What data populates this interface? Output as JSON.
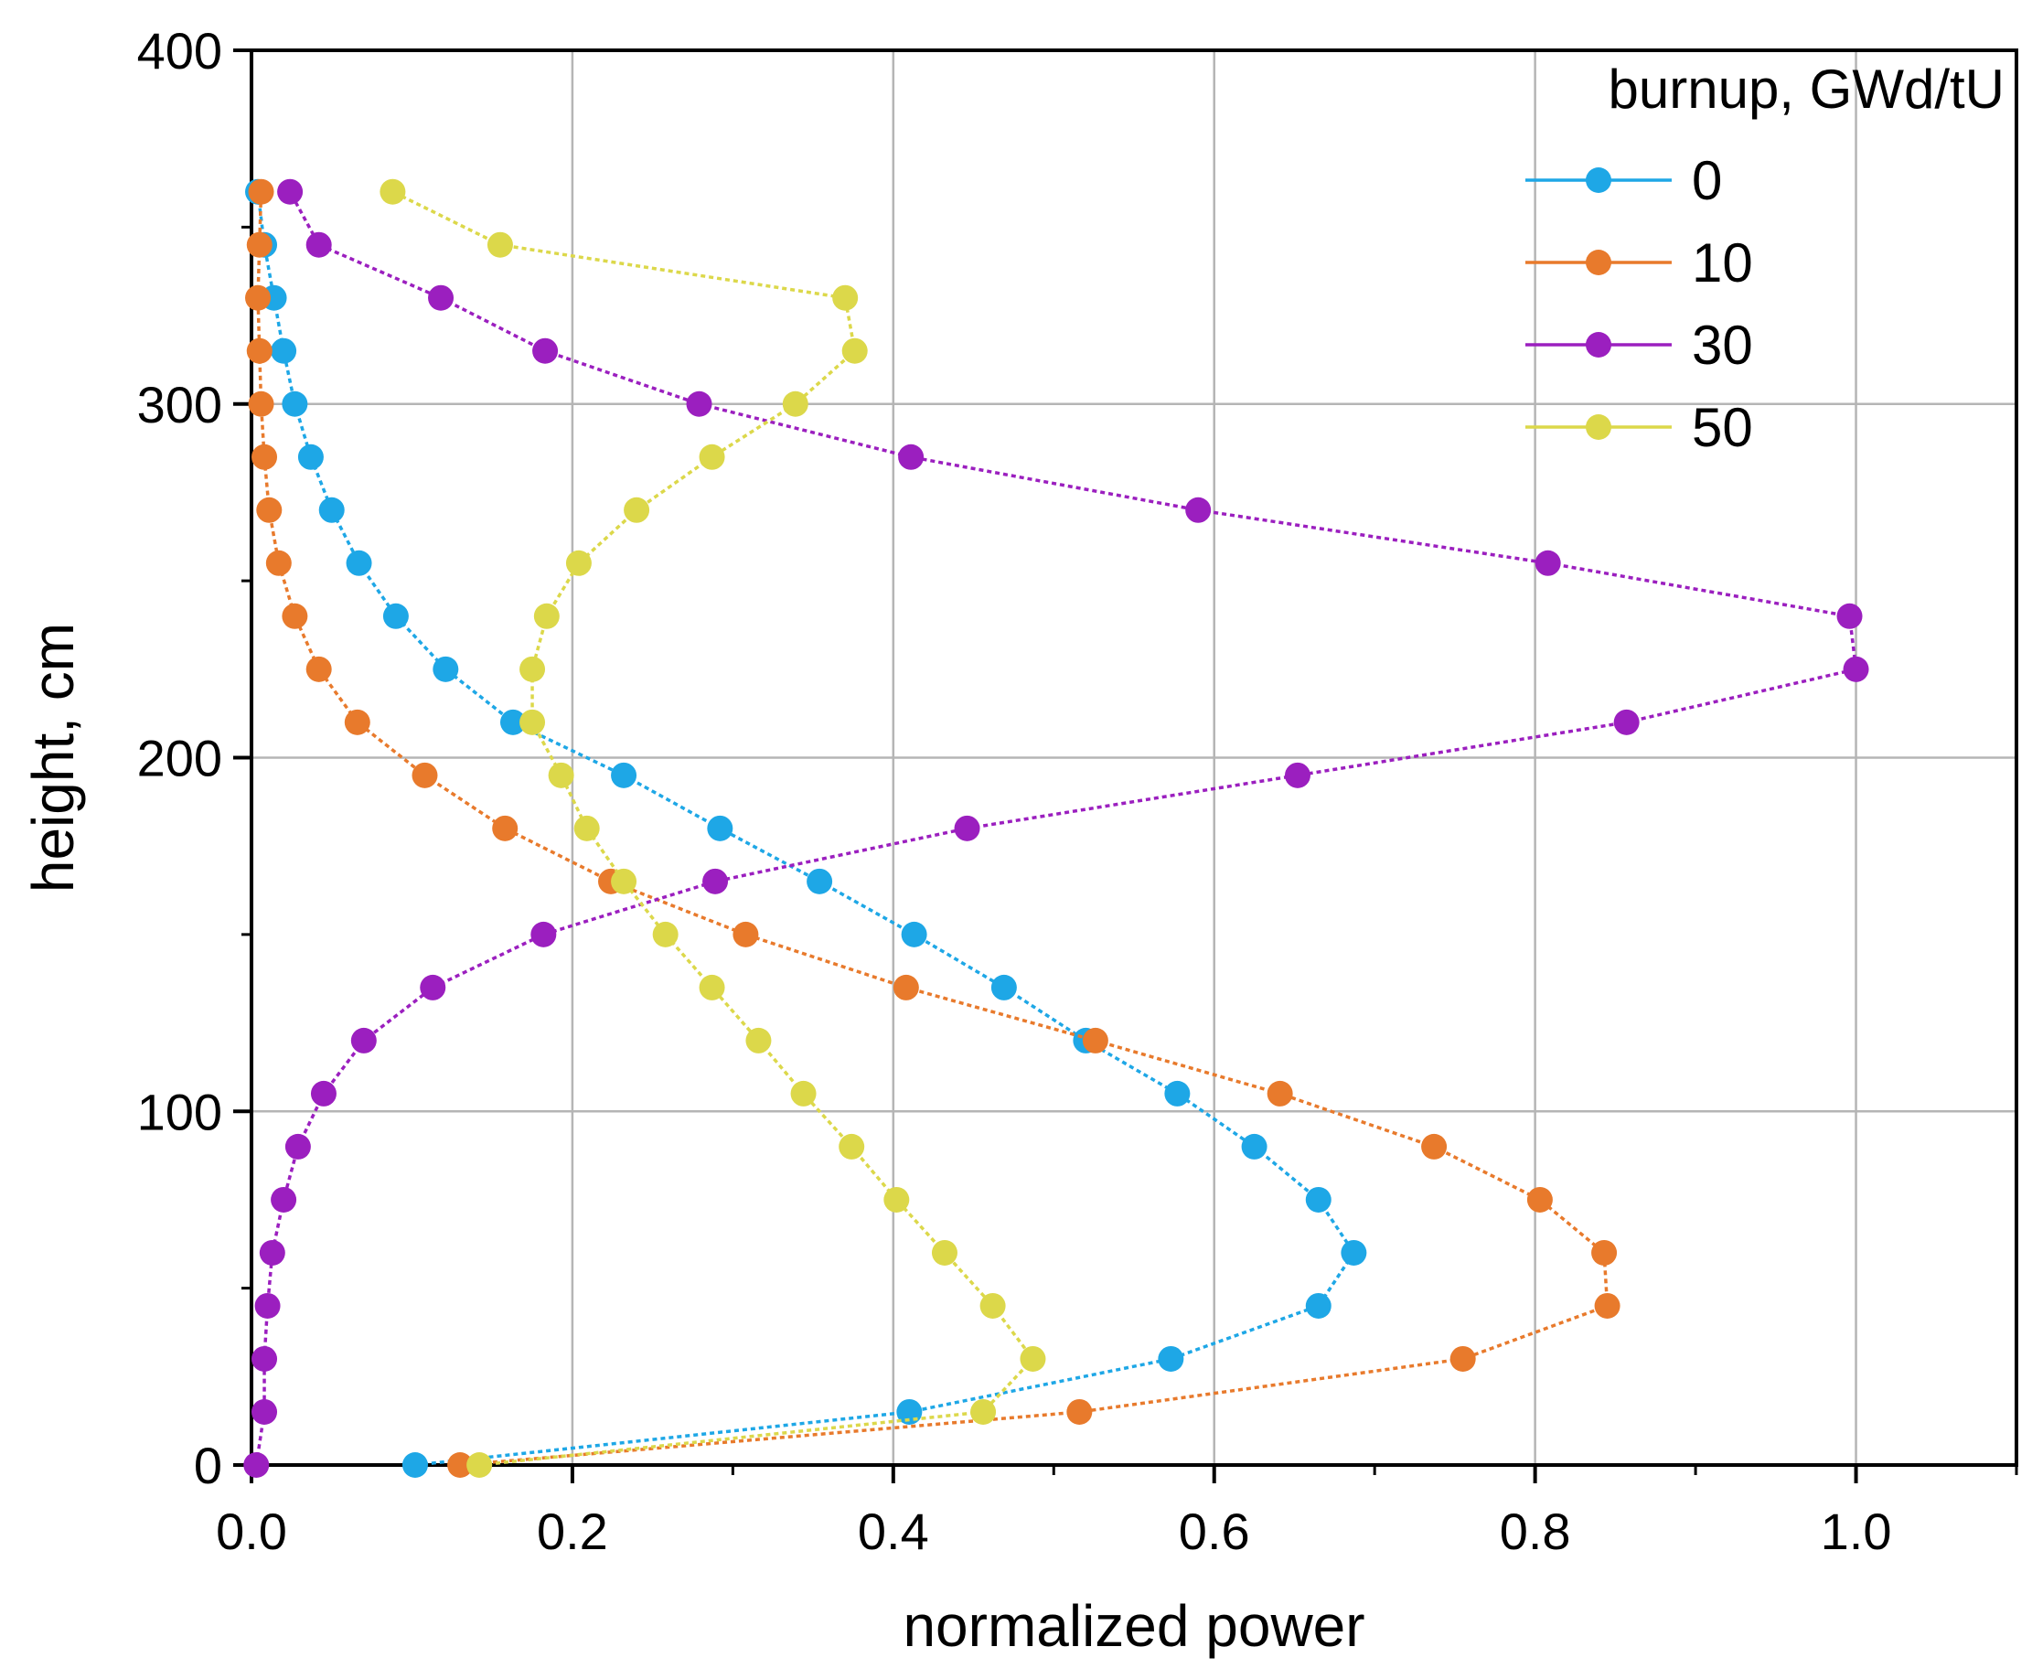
{
  "chart_data": {
    "type": "line",
    "title": "",
    "xlabel": "normalized power",
    "ylabel": "height, cm",
    "xlim": [
      0.0,
      1.1
    ],
    "ylim": [
      0,
      400
    ],
    "xticks": [
      0.0,
      0.2,
      0.4,
      0.6,
      0.8,
      1.0
    ],
    "xtick_labels": [
      "0.0",
      "0.2",
      "0.4",
      "0.6",
      "0.8",
      "1.0"
    ],
    "yticks": [
      0,
      100,
      200,
      300,
      400
    ],
    "ytick_labels": [
      "0",
      "100",
      "200",
      "300",
      "400"
    ],
    "grid": true,
    "legend_title": "burnup, GWd/tU",
    "legend_position": "top-right",
    "y": [
      0,
      15,
      30,
      45,
      60,
      75,
      90,
      105,
      120,
      135,
      150,
      165,
      180,
      195,
      210,
      225,
      240,
      255,
      270,
      285,
      300,
      315,
      330,
      345,
      360
    ],
    "series": [
      {
        "name": "0",
        "color": "#1ea7e6",
        "values": [
          0.102,
          0.41,
          0.573,
          0.665,
          0.687,
          0.665,
          0.625,
          0.577,
          0.52,
          0.469,
          0.413,
          0.354,
          0.292,
          0.232,
          0.163,
          0.121,
          0.09,
          0.067,
          0.05,
          0.037,
          0.027,
          0.02,
          0.014,
          0.008,
          0.004
        ]
      },
      {
        "name": "10",
        "color": "#e87a2c",
        "values": [
          0.13,
          0.516,
          0.755,
          0.845,
          0.843,
          0.803,
          0.737,
          0.641,
          0.526,
          0.408,
          0.308,
          0.224,
          0.158,
          0.108,
          0.066,
          0.042,
          0.027,
          0.017,
          0.011,
          0.008,
          0.006,
          0.005,
          0.004,
          0.005,
          0.006
        ]
      },
      {
        "name": "30",
        "color": "#9b1fbf",
        "values": [
          0.003,
          0.008,
          0.008,
          0.01,
          0.013,
          0.02,
          0.029,
          0.045,
          0.07,
          0.113,
          0.182,
          0.289,
          0.446,
          0.652,
          0.857,
          1.0,
          0.996,
          0.808,
          0.59,
          0.411,
          0.279,
          0.183,
          0.118,
          0.042,
          0.024
        ]
      },
      {
        "name": "50",
        "color": "#dcd84a",
        "values": [
          0.142,
          0.456,
          0.487,
          0.462,
          0.432,
          0.402,
          0.374,
          0.344,
          0.316,
          0.287,
          0.258,
          0.232,
          0.209,
          0.193,
          0.175,
          0.175,
          0.184,
          0.204,
          0.24,
          0.287,
          0.339,
          0.376,
          0.37,
          0.155,
          0.088
        ]
      }
    ]
  }
}
